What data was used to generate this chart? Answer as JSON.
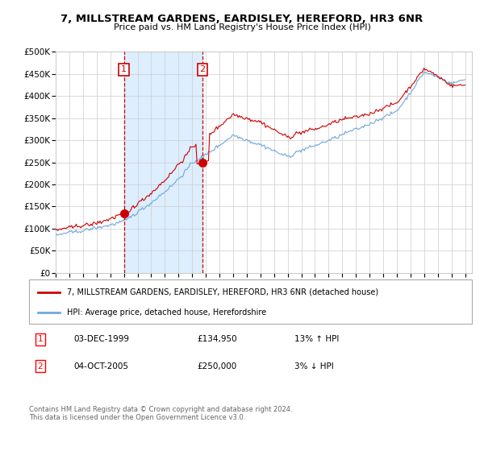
{
  "title": "7, MILLSTREAM GARDENS, EARDISLEY, HEREFORD, HR3 6NR",
  "subtitle": "Price paid vs. HM Land Registry's House Price Index (HPI)",
  "sale1_date_num": 2000.0,
  "sale1_label": "1",
  "sale1_price": 134950,
  "sale1_date_str": "03-DEC-1999",
  "sale1_hpi_pct": "13% ↑ HPI",
  "sale2_date_num": 2005.75,
  "sale2_label": "2",
  "sale2_price": 250000,
  "sale2_date_str": "04-OCT-2005",
  "sale2_hpi_pct": "3% ↓ HPI",
  "ylim": [
    0,
    500000
  ],
  "xlim_start": 1995.0,
  "xlim_end": 2025.5,
  "hpi_line_color": "#6fa8dc",
  "price_line_color": "#cc0000",
  "marker_color": "#cc0000",
  "shading_color": "#ddeeff",
  "vline_color": "#cc0000",
  "background_color": "#ffffff",
  "grid_color": "#cccccc",
  "footer_text": "Contains HM Land Registry data © Crown copyright and database right 2024.\nThis data is licensed under the Open Government Licence v3.0.",
  "legend_label_red": "7, MILLSTREAM GARDENS, EARDISLEY, HEREFORD, HR3 6NR (detached house)",
  "legend_label_blue": "HPI: Average price, detached house, Herefordshire"
}
